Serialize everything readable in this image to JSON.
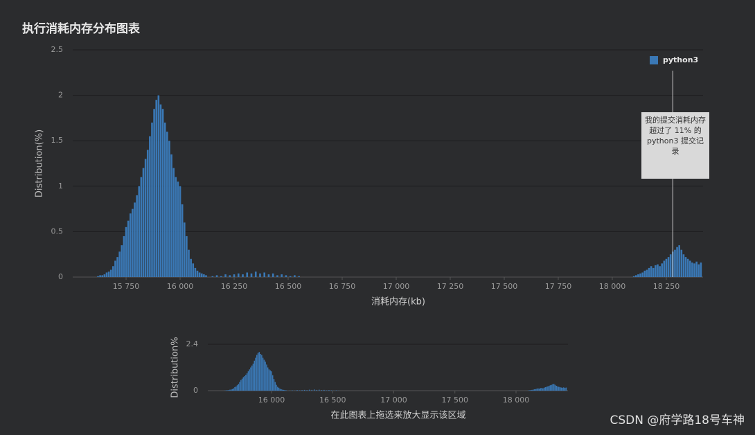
{
  "chart_data": [
    {
      "type": "bar",
      "title": "执行消耗内存分布图表",
      "xlabel": "消耗内存(kb)",
      "ylabel": "Distribution(%)",
      "x": [
        15620,
        15630,
        15640,
        15650,
        15660,
        15670,
        15680,
        15690,
        15700,
        15710,
        15720,
        15730,
        15740,
        15750,
        15760,
        15770,
        15780,
        15790,
        15800,
        15810,
        15820,
        15830,
        15840,
        15850,
        15860,
        15870,
        15880,
        15890,
        15900,
        15910,
        15920,
        15930,
        15940,
        15950,
        15960,
        15970,
        15980,
        15990,
        16000,
        16010,
        16020,
        16030,
        16040,
        16050,
        16060,
        16070,
        16080,
        16090,
        16100,
        16110,
        16120,
        16150,
        16170,
        16190,
        16210,
        16230,
        16250,
        16270,
        16290,
        16310,
        16330,
        16350,
        16370,
        16390,
        16410,
        16430,
        16450,
        16470,
        16490,
        16510,
        16530,
        16550,
        18100,
        18110,
        18120,
        18130,
        18140,
        18150,
        18160,
        18170,
        18180,
        18190,
        18200,
        18210,
        18220,
        18230,
        18240,
        18250,
        18260,
        18270,
        18280,
        18290,
        18300,
        18310,
        18320,
        18330,
        18340,
        18350,
        18360,
        18370,
        18380,
        18390,
        18400,
        18410
      ],
      "series": [
        {
          "name": "python3",
          "color": "#3a78b5",
          "values": [
            0.01,
            0.02,
            0.02,
            0.03,
            0.05,
            0.06,
            0.08,
            0.12,
            0.18,
            0.22,
            0.28,
            0.35,
            0.45,
            0.55,
            0.62,
            0.7,
            0.75,
            0.82,
            0.9,
            1.0,
            1.1,
            1.2,
            1.3,
            1.4,
            1.55,
            1.7,
            1.85,
            1.95,
            2.0,
            1.9,
            1.85,
            1.7,
            1.6,
            1.5,
            1.35,
            1.2,
            1.1,
            1.05,
            1.0,
            0.8,
            0.6,
            0.45,
            0.3,
            0.2,
            0.15,
            0.1,
            0.07,
            0.05,
            0.04,
            0.03,
            0.02,
            0.01,
            0.02,
            0.01,
            0.03,
            0.02,
            0.03,
            0.04,
            0.03,
            0.05,
            0.04,
            0.06,
            0.04,
            0.05,
            0.03,
            0.04,
            0.02,
            0.03,
            0.02,
            0.01,
            0.02,
            0.01,
            0.01,
            0.02,
            0.03,
            0.04,
            0.05,
            0.07,
            0.08,
            0.1,
            0.12,
            0.1,
            0.13,
            0.14,
            0.12,
            0.15,
            0.18,
            0.2,
            0.22,
            0.25,
            0.28,
            0.3,
            0.33,
            0.35,
            0.3,
            0.25,
            0.22,
            0.2,
            0.18,
            0.16,
            0.15,
            0.17,
            0.14,
            0.16
          ]
        }
      ],
      "xlim": [
        15503,
        18420
      ],
      "ylim": [
        0,
        2.5
      ],
      "xticks": [
        {
          "value": 15750,
          "label": "15 750"
        },
        {
          "value": 16000,
          "label": "16 000"
        },
        {
          "value": 16250,
          "label": "16 250"
        },
        {
          "value": 16500,
          "label": "16 500"
        },
        {
          "value": 16750,
          "label": "16 750"
        },
        {
          "value": 17000,
          "label": "17 000"
        },
        {
          "value": 17250,
          "label": "17 250"
        },
        {
          "value": 17500,
          "label": "17 500"
        },
        {
          "value": 17750,
          "label": "17 750"
        },
        {
          "value": 18000,
          "label": "18 000"
        },
        {
          "value": 18250,
          "label": "18 250"
        }
      ],
      "yticks": [
        0,
        0.5,
        1,
        1.5,
        2,
        2.5
      ],
      "grid": true,
      "legend": "upper right",
      "highlight_x": 18280,
      "annotations": [
        "我的提交消耗内存",
        "超过了 11% 的 python3 提交记录"
      ]
    },
    {
      "type": "bar",
      "xlabel": "在此图表上拖选来放大显示该区域",
      "ylabel": "Distribution%",
      "xlim": [
        15479,
        18425
      ],
      "ylim": [
        0,
        2.4
      ],
      "xticks": [
        {
          "value": 16000,
          "label": "16 000"
        },
        {
          "value": 16500,
          "label": "16 500"
        },
        {
          "value": 17000,
          "label": "17 000"
        },
        {
          "value": 17500,
          "label": "17 500"
        },
        {
          "value": 18000,
          "label": "18 000"
        }
      ],
      "yticks": [
        0,
        2.4
      ],
      "grid": true
    }
  ],
  "watermark": "CSDN @府学路18号车神"
}
